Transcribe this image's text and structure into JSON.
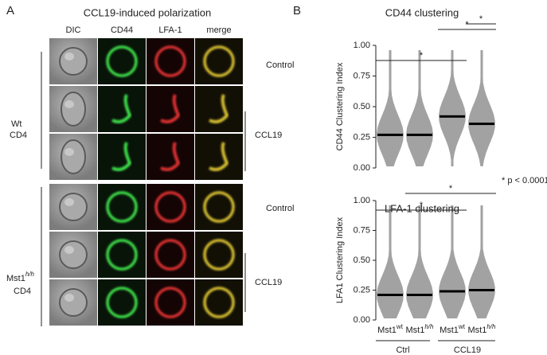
{
  "panel_a": {
    "label": "A",
    "title": "CCL19-induced polarization",
    "columns": [
      "DIC",
      "CD44",
      "LFA-1",
      "merge"
    ],
    "row_labels": [
      "Control",
      "CCL19",
      "Control",
      "CCL19"
    ],
    "groups": [
      {
        "lines": [
          "Wt",
          "CD4"
        ]
      },
      {
        "base": "Mst1",
        "sup": "h/h",
        "line2": "CD4"
      }
    ]
  },
  "panel_b": {
    "label": "B",
    "annotation": "* p < 0.0001",
    "x_groups": [
      "Ctrl",
      "CCL19"
    ]
  },
  "chart_data": [
    {
      "type": "dot",
      "title": "CD44 clustering",
      "ylabel": "CD44 Clustering Index",
      "categories": [
        "Mst1",
        "Mst1",
        "Mst1",
        "Mst1"
      ],
      "category_superscripts": [
        "wt",
        "h/h",
        "wt",
        "h/h"
      ],
      "values": [
        0.27,
        0.27,
        0.42,
        0.36
      ],
      "color": "#000000",
      "ylim": [
        0,
        1
      ],
      "yticks": [
        {
          "value": 0,
          "label": "0.00"
        },
        {
          "value": 0.25,
          "label": "0.25"
        },
        {
          "value": 0.5,
          "label": "0.50"
        },
        {
          "value": 0.75,
          "label": "0.75"
        },
        {
          "value": 1,
          "label": "1.00"
        }
      ],
      "significance": [
        "*",
        "*",
        "*"
      ]
    },
    {
      "type": "dot",
      "title": "LFA-1 clustering",
      "ylabel": "LFA1 Clustering Index",
      "categories": [
        "Mst1",
        "Mst1",
        "Mst1",
        "Mst1"
      ],
      "category_superscripts": [
        "wt",
        "h/h",
        "wt",
        "h/h"
      ],
      "values": [
        0.21,
        0.21,
        0.24,
        0.25
      ],
      "color": "#000000",
      "ylim": [
        0,
        1
      ],
      "yticks": [
        {
          "value": 0,
          "label": "0.00"
        },
        {
          "value": 0.25,
          "label": "0.25"
        },
        {
          "value": 0.5,
          "label": "0.50"
        },
        {
          "value": 0.75,
          "label": "0.75"
        },
        {
          "value": 1,
          "label": "1.00"
        }
      ],
      "significance": [
        "*",
        "*"
      ]
    }
  ]
}
